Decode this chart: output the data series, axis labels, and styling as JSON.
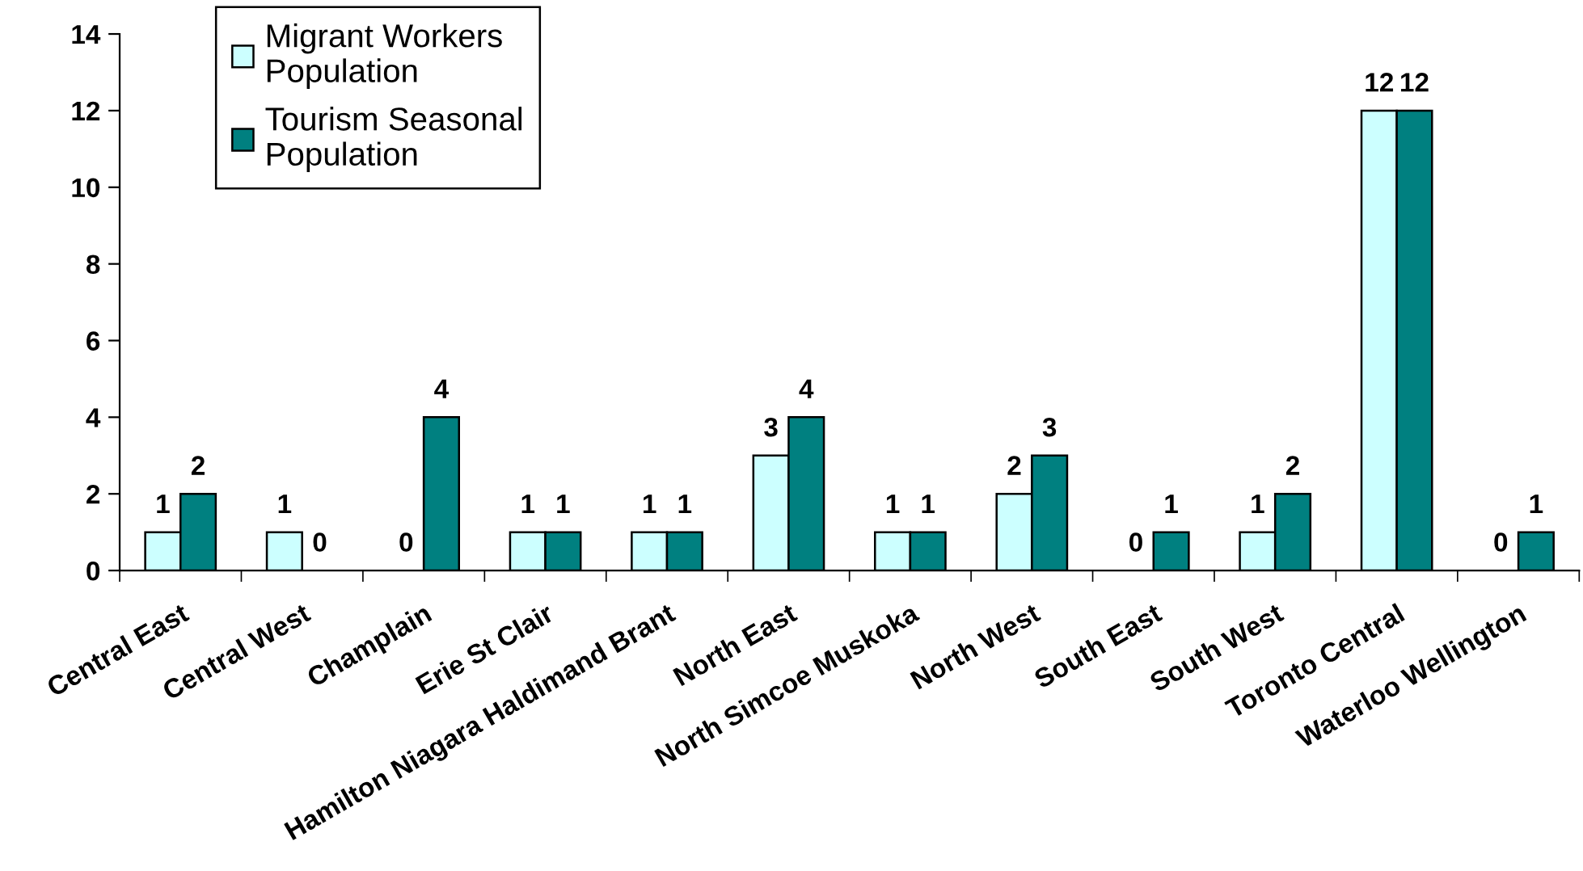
{
  "chart_data": {
    "type": "bar",
    "categories": [
      "Central East",
      "Central West",
      "Champlain",
      "Erie St Clair",
      "Hamilton Niagara Haldimand Brant",
      "North East",
      "North Simcoe Muskoka",
      "North West",
      "South East",
      "South West",
      "Toronto Central",
      "Waterloo Wellington"
    ],
    "series": [
      {
        "name": "Migrant Workers\nPopulation",
        "color": "#ccffff",
        "values": [
          1,
          1,
          0,
          1,
          1,
          3,
          1,
          2,
          0,
          1,
          12,
          0
        ]
      },
      {
        "name": "Tourism Seasonal\nPopulation",
        "color": "#008080",
        "values": [
          2,
          0,
          4,
          1,
          1,
          4,
          1,
          3,
          1,
          2,
          12,
          1
        ]
      }
    ],
    "ylim": [
      0,
      14
    ],
    "yticks": [
      0,
      2,
      4,
      6,
      8,
      10,
      12,
      14
    ],
    "legend": "top left",
    "data_labels": true
  }
}
